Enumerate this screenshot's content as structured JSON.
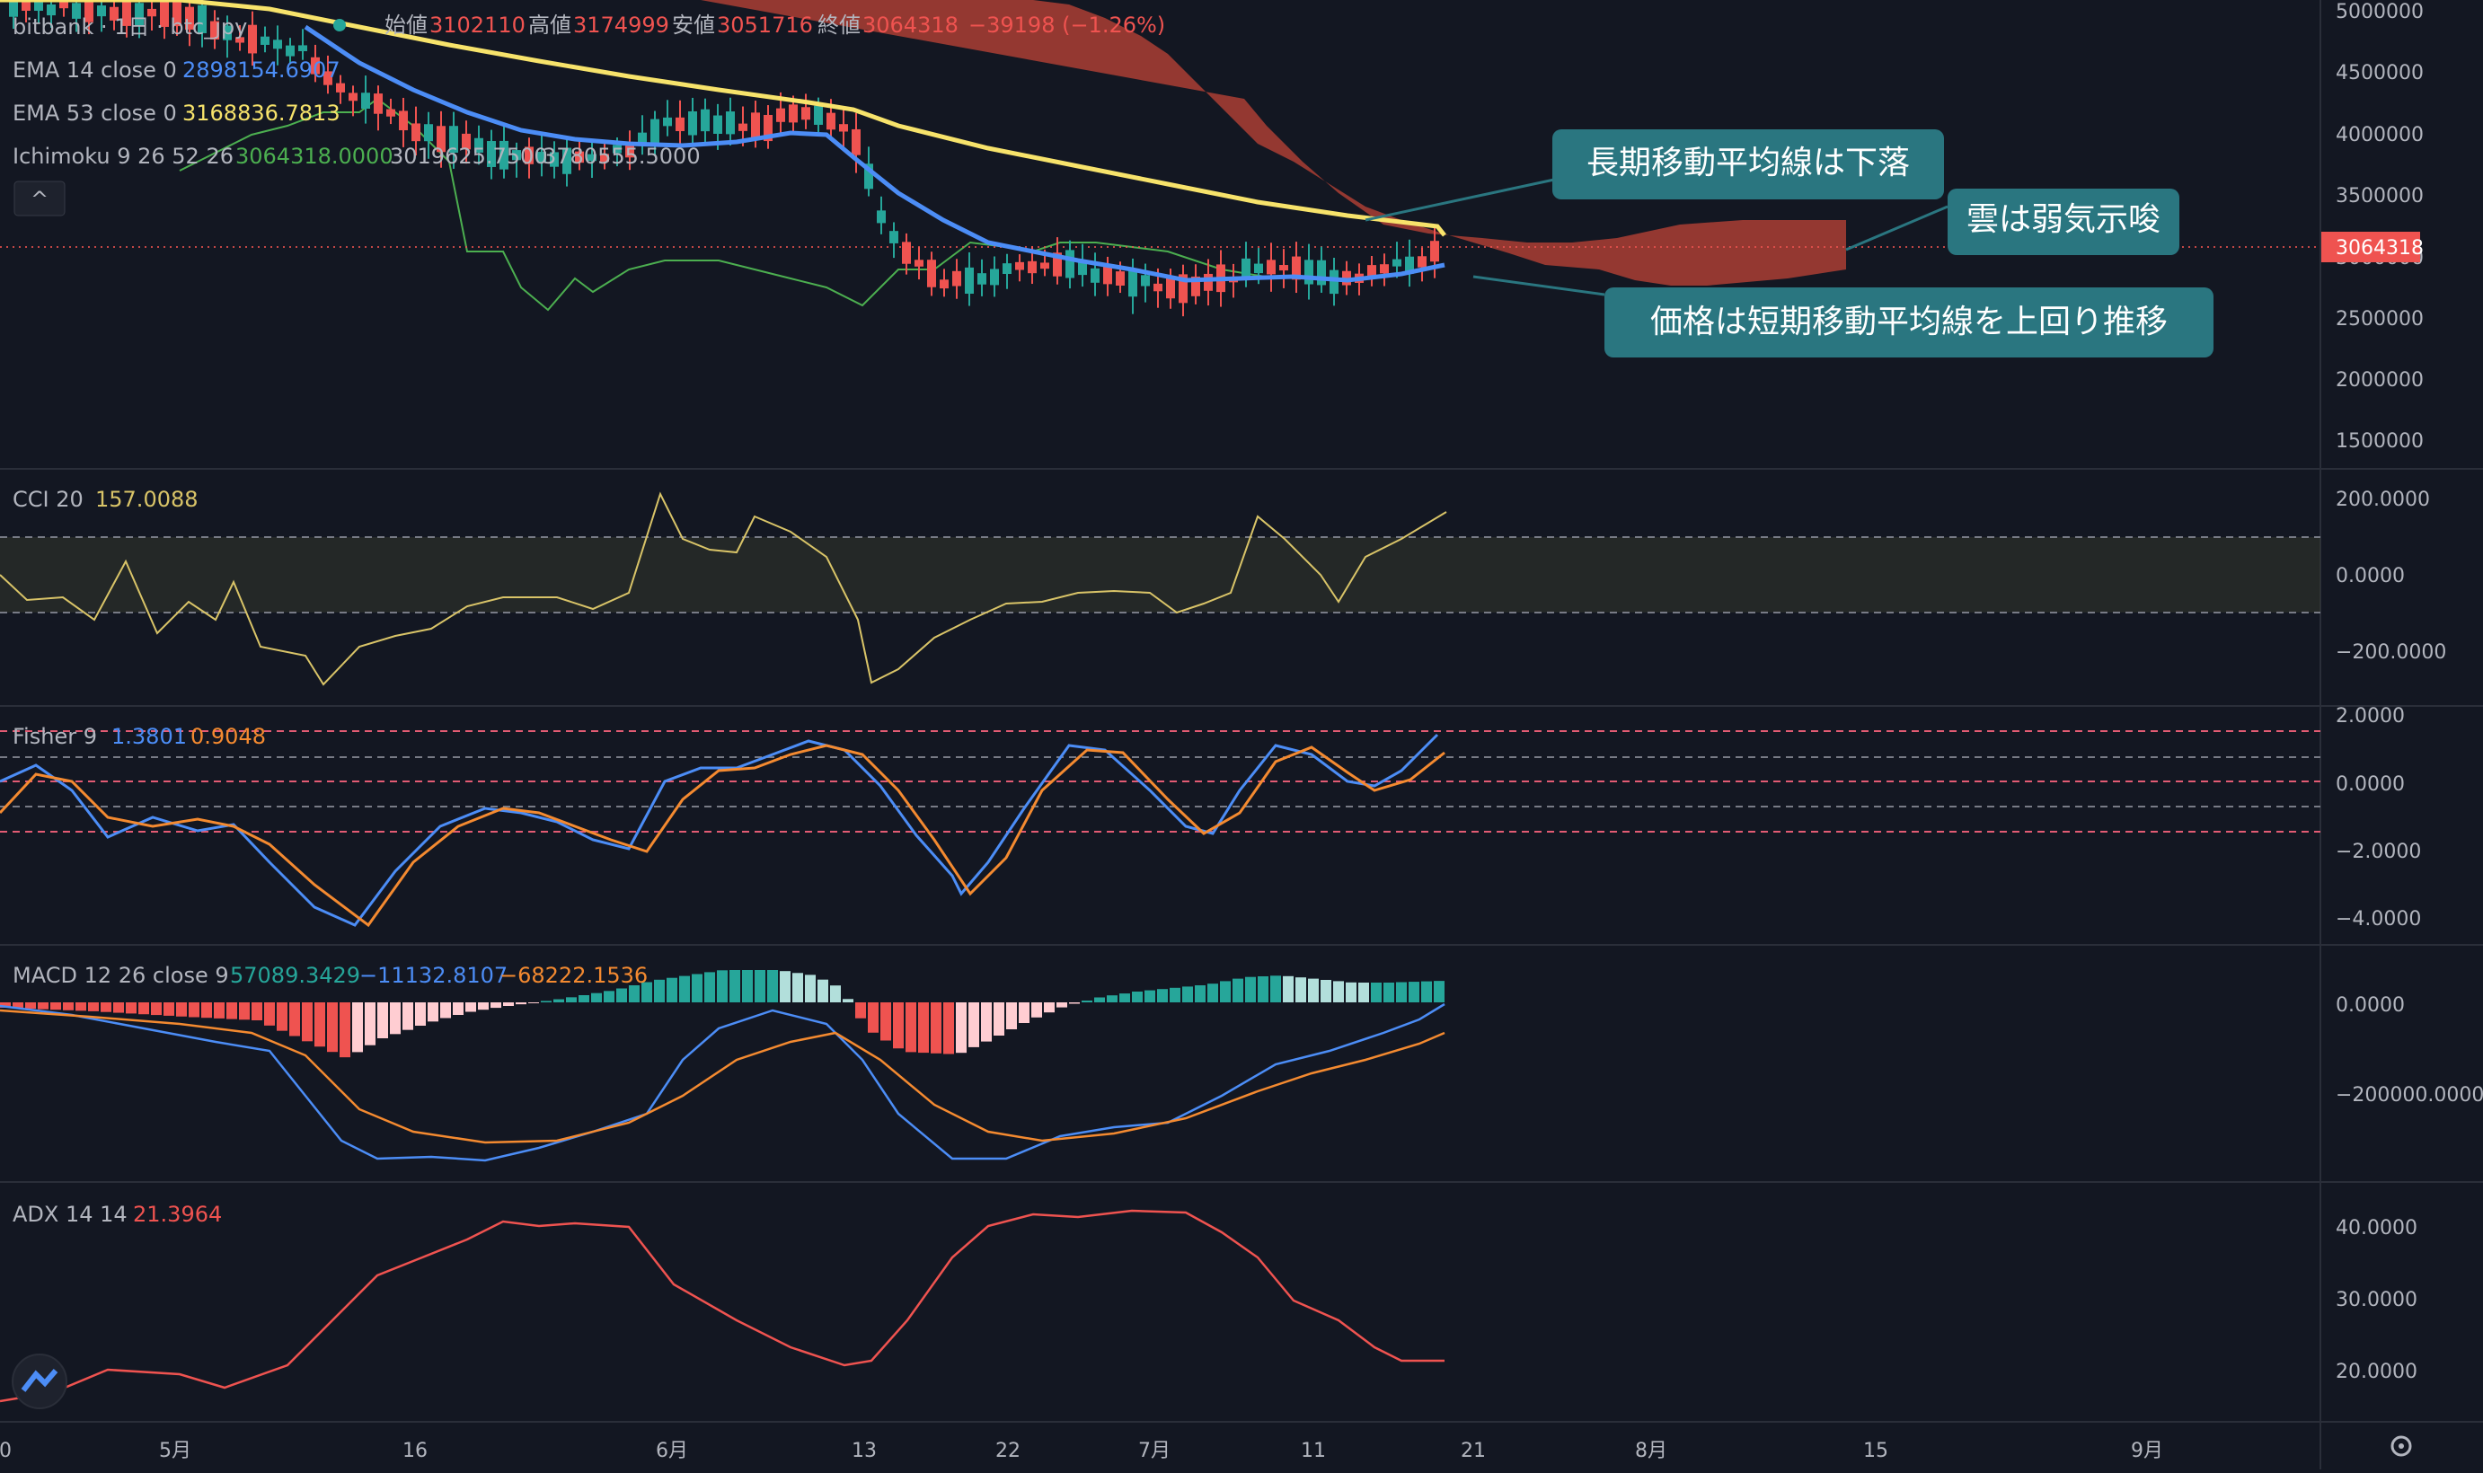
{
  "header": {
    "symbol_line": "bitbank · 1日 · btc_jpy",
    "ohlc": [
      {
        "label": "始値",
        "value": "3102110"
      },
      {
        "label": "高値",
        "value": "3174999"
      },
      {
        "label": "安値",
        "value": "3051716"
      },
      {
        "label": "終値",
        "value": "3064318"
      }
    ],
    "change": "−39198 (−1.26%)"
  },
  "indicators": {
    "ema14": {
      "name": "EMA 14 close 0",
      "value": "2898154.6907"
    },
    "ema53": {
      "name": "EMA 53 close 0",
      "value": "3168836.7813"
    },
    "ichimoku": {
      "name": "Ichimoku 9 26 52 26",
      "v1": "3064318.0000",
      "v2": "3019625.7500",
      "v3": "3780555.5000"
    },
    "collapse": "^"
  },
  "annotations": {
    "a1": "長期移動平均線は下落",
    "a2": "雲は弱気示唆",
    "a3": "価格は短期移動平均線を上回り推移"
  },
  "price_axis": {
    "ticks": [
      "5000000",
      "4500000",
      "4000000",
      "3500000",
      "3000000",
      "2500000",
      "2000000",
      "1500000"
    ],
    "current": "3064318"
  },
  "cci": {
    "name": "CCI 20",
    "value": "157.0088",
    "ticks": [
      "200.0000",
      "0.0000",
      "−200.0000"
    ]
  },
  "fisher": {
    "name": "Fisher 9",
    "v1": "1.3801",
    "v2": "0.9048",
    "ticks": [
      "2.0000",
      "0.0000",
      "−2.0000",
      "−4.0000"
    ]
  },
  "macd": {
    "name": "MACD 12 26 close 9",
    "v1": "57089.3429",
    "v2": "−11132.8107",
    "v3": "−68222.1536",
    "ticks": [
      "0.0000",
      "−200000.0000"
    ]
  },
  "adx": {
    "name": "ADX 14 14",
    "value": "21.3964",
    "ticks": [
      "40.0000",
      "30.0000",
      "20.0000"
    ]
  },
  "time_axis": [
    "0",
    "5月",
    "16",
    "6月",
    "13",
    "22",
    "7月",
    "11",
    "21",
    "8月",
    "15",
    "9月"
  ],
  "colors": {
    "background": "#131722",
    "up": "#26a69a",
    "down": "#ef5350",
    "ema14": "#4c8df6",
    "ema53": "#f7e36b",
    "cloud": "#a33c33",
    "callout": "#2a7680"
  }
}
